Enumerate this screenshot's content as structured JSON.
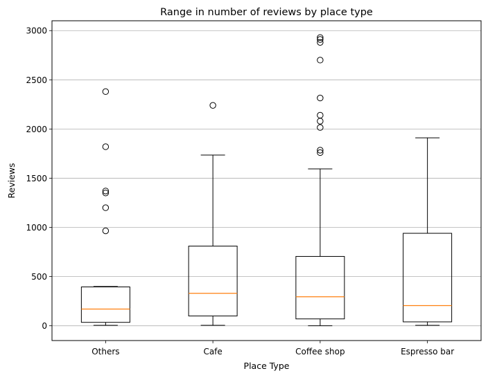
{
  "chart_data": {
    "type": "box",
    "title": "Range in number of reviews by place type",
    "xlabel": "Place Type",
    "ylabel": "Reviews",
    "ylim": [
      -150,
      3100
    ],
    "yticks": [
      0,
      500,
      1000,
      1500,
      2000,
      2500,
      3000
    ],
    "grid": "horizontal",
    "categories": [
      "Others",
      "Cafe",
      "Coffee shop",
      "Espresso bar"
    ],
    "boxes": [
      {
        "category": "Others",
        "whisker_low": 5,
        "q1": 35,
        "median": 170,
        "q3": 395,
        "whisker_high": 400,
        "outliers": [
          2380,
          1820,
          1370,
          1350,
          1200,
          965
        ]
      },
      {
        "category": "Cafe",
        "whisker_low": 5,
        "q1": 100,
        "median": 330,
        "q3": 810,
        "whisker_high": 1735,
        "outliers": [
          2240
        ]
      },
      {
        "category": "Coffee shop",
        "whisker_low": 0,
        "q1": 70,
        "median": 295,
        "q3": 705,
        "whisker_high": 1595,
        "outliers": [
          2930,
          2910,
          2880,
          2700,
          2315,
          2140,
          2080,
          2015,
          1785,
          1760
        ]
      },
      {
        "category": "Espresso bar",
        "whisker_low": 5,
        "q1": 40,
        "median": 205,
        "q3": 940,
        "whisker_high": 1910,
        "outliers": []
      }
    ],
    "colors": {
      "box": "#000000",
      "median": "#ff7f0e",
      "grid": "#b0b0b0",
      "flier": "#000000"
    }
  }
}
